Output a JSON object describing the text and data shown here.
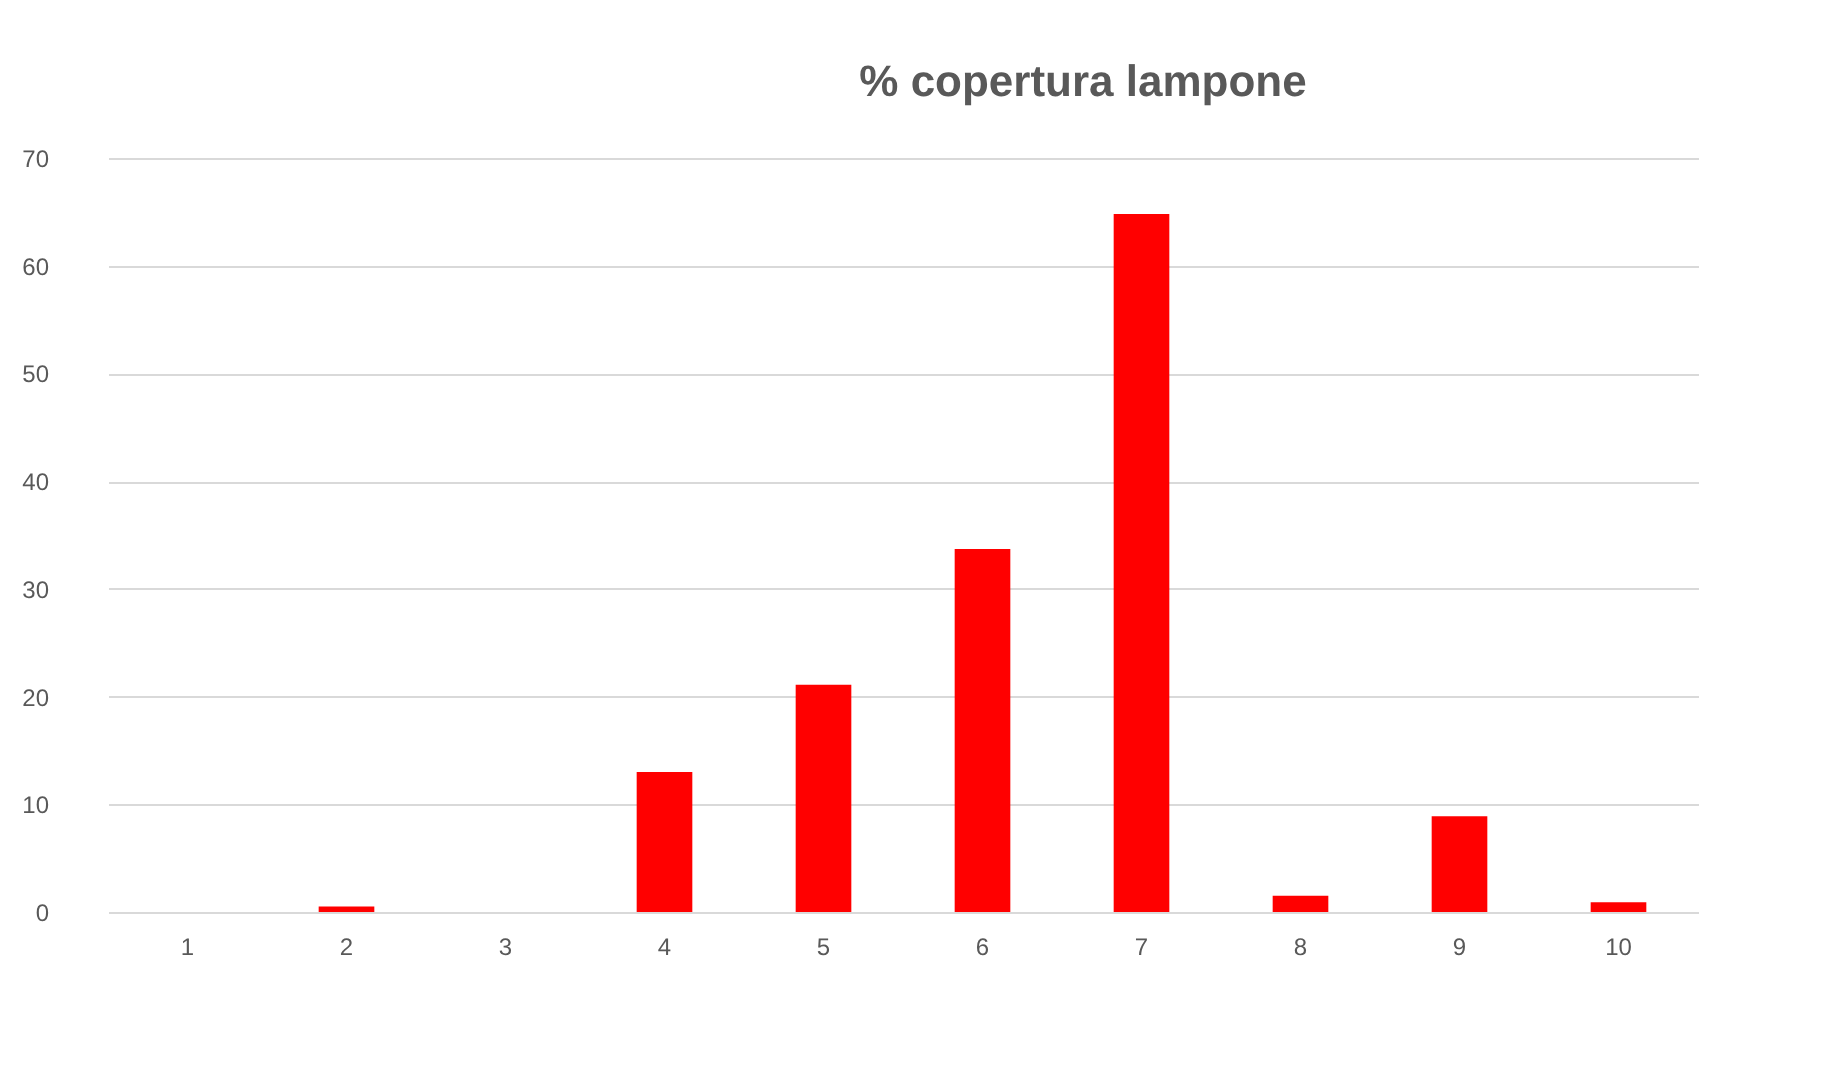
{
  "chart_data": {
    "type": "bar",
    "title": "% copertura lampone",
    "categories": [
      "1",
      "2",
      "3",
      "4",
      "5",
      "6",
      "7",
      "8",
      "9",
      "10"
    ],
    "values": [
      0,
      0.5,
      0,
      13.0,
      21.1,
      33.7,
      64.8,
      1.5,
      8.9,
      0.9
    ],
    "color": "#ff0000",
    "ylim": [
      0,
      70
    ],
    "yticks": [
      0,
      10,
      20,
      30,
      40,
      50,
      60,
      70
    ],
    "grid": "y"
  }
}
